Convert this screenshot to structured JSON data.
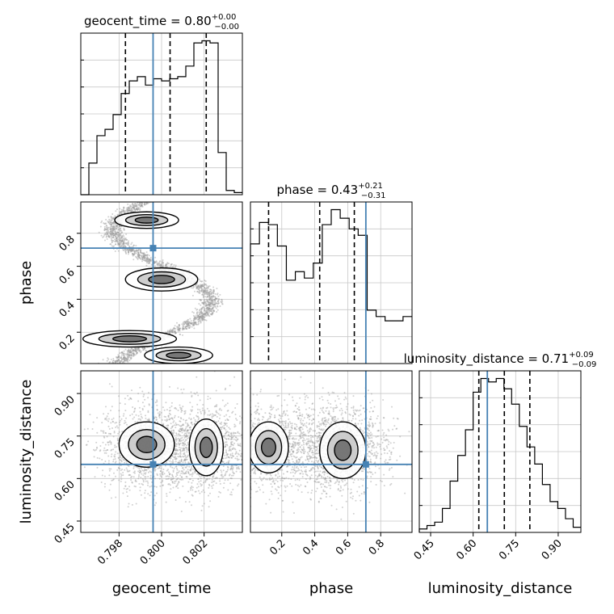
{
  "chart_data": {
    "type": "corner",
    "parameters": [
      "geocent_time",
      "phase",
      "luminosity_distance"
    ],
    "truth_color": "#4682b4",
    "truths": {
      "geocent_time": 0.7996,
      "phase": 0.71,
      "luminosity_distance": 0.65
    },
    "titles": [
      {
        "param": "geocent_time",
        "label": "geocent_time",
        "median": "0.80",
        "plus": "+0.00",
        "minus": "−0.00"
      },
      {
        "param": "phase",
        "label": "phase",
        "median": "0.43",
        "plus": "+0.21",
        "minus": "−0.31"
      },
      {
        "param": "luminosity_distance",
        "label": "luminosity_distance",
        "median": "0.71",
        "plus": "+0.09",
        "minus": "−0.09"
      }
    ],
    "axes": {
      "geocent_time": {
        "range": [
          0.7962,
          0.8038
        ],
        "ticks": [
          0.798,
          0.8,
          0.802
        ],
        "tick_labels": [
          "0.798",
          "0.800",
          "0.802"
        ],
        "label": "geocent_time"
      },
      "phase": {
        "range": [
          0.01,
          0.99
        ],
        "ticks": [
          0.2,
          0.4,
          0.6,
          0.8
        ],
        "tick_labels": [
          "0.2",
          "0.4",
          "0.6",
          "0.8"
        ],
        "label": "phase"
      },
      "luminosity_distance": {
        "range": [
          0.41,
          0.98
        ],
        "ticks": [
          0.45,
          0.6,
          0.75,
          0.9
        ],
        "tick_labels": [
          "0.45",
          "0.60",
          "0.75",
          "0.90"
        ],
        "label": "luminosity_distance"
      }
    },
    "histograms": {
      "geocent_time": {
        "counts": [
          0,
          15,
          28,
          31,
          38,
          48,
          54,
          56,
          52,
          55,
          54,
          55,
          56,
          61,
          72,
          73,
          72,
          20,
          2,
          1
        ],
        "quantiles": [
          0.7983,
          0.8004,
          0.8021
        ]
      },
      "phase": {
        "counts": [
          56,
          66,
          65,
          55,
          39,
          43,
          40,
          47,
          65,
          72,
          68,
          63,
          60,
          25,
          22,
          20,
          20,
          22
        ],
        "quantiles": [
          0.12,
          0.43,
          0.64
        ]
      },
      "luminosity_distance": {
        "counts": [
          2,
          4,
          6,
          14,
          30,
          45,
          60,
          82,
          90,
          88,
          90,
          84,
          75,
          62,
          50,
          40,
          28,
          18,
          14,
          8,
          3
        ],
        "quantiles": [
          0.62,
          0.71,
          0.8
        ]
      }
    },
    "grid": true
  }
}
